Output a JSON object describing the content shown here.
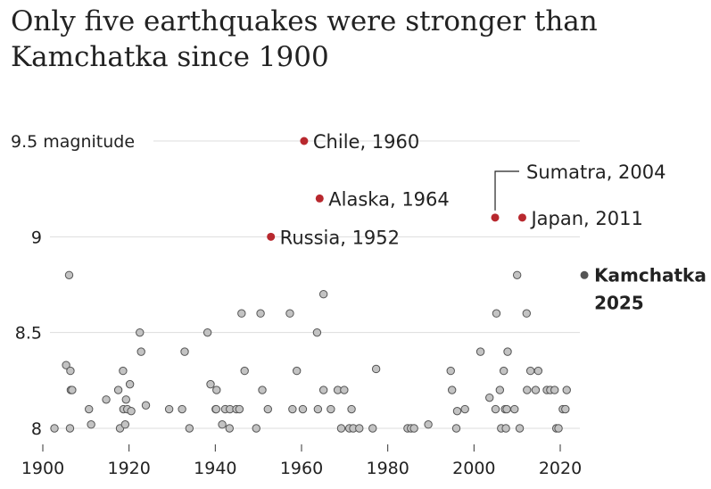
{
  "title_line1": "Only five earthquakes were stronger than",
  "title_line2": "Kamchatka since 1900",
  "chart_data": {
    "type": "scatter",
    "title": "Only five earthquakes were stronger than Kamchatka since 1900",
    "xlim": [
      1900,
      2026
    ],
    "ylim": [
      7.95,
      9.55
    ],
    "x_ticks": [
      1900,
      1920,
      1940,
      1960,
      1980,
      2000,
      2020
    ],
    "y_ticks": [
      {
        "value": 8,
        "label": "8"
      },
      {
        "value": 8.5,
        "label": "8.5"
      },
      {
        "value": 9,
        "label": "9"
      },
      {
        "value": 9.5,
        "label": "9.5 magnitude"
      }
    ],
    "grid": true,
    "colors": {
      "highlight": "#b8282e",
      "kamchatka": "#555555",
      "other_fill": "#c3c3c3",
      "other_stroke": "#555555",
      "grid": "#dddddd"
    },
    "highlighted": [
      {
        "x": 1960.6,
        "y": 9.5,
        "label": "Chile, 1960"
      },
      {
        "x": 1964.2,
        "y": 9.2,
        "label": "Alaska, 1964"
      },
      {
        "x": 1952.9,
        "y": 9.0,
        "label": "Russia, 1952"
      },
      {
        "x": 2004.9,
        "y": 9.1,
        "label": "Sumatra, 2004"
      },
      {
        "x": 2011.2,
        "y": 9.1,
        "label": "Japan, 2011"
      }
    ],
    "kamchatka": {
      "x": 2025.6,
      "y": 8.8,
      "label_line1": "Kamchatka",
      "label_line2": "2025"
    },
    "other_points": [
      [
        1902.7,
        8.0
      ],
      [
        1905.4,
        8.33
      ],
      [
        1906.1,
        8.8
      ],
      [
        1906.3,
        8.0
      ],
      [
        1906.4,
        8.3
      ],
      [
        1906.5,
        8.2
      ],
      [
        1906.8,
        8.2
      ],
      [
        1910.7,
        8.1
      ],
      [
        1911.2,
        8.02
      ],
      [
        1914.7,
        8.15
      ],
      [
        1917.5,
        8.2
      ],
      [
        1917.9,
        8.0
      ],
      [
        1918.6,
        8.3
      ],
      [
        1918.7,
        8.1
      ],
      [
        1919.1,
        8.02
      ],
      [
        1919.6,
        8.1
      ],
      [
        1919.3,
        8.15
      ],
      [
        1920.2,
        8.23
      ],
      [
        1920.5,
        8.09
      ],
      [
        1922.5,
        8.5
      ],
      [
        1922.8,
        8.4
      ],
      [
        1923.9,
        8.12
      ],
      [
        1929.3,
        8.1
      ],
      [
        1932.3,
        8.1
      ],
      [
        1932.9,
        8.4
      ],
      [
        1934.0,
        8.0
      ],
      [
        1938.2,
        8.5
      ],
      [
        1938.9,
        8.23
      ],
      [
        1940.1,
        8.1
      ],
      [
        1940.3,
        8.2
      ],
      [
        1941.6,
        8.02
      ],
      [
        1942.3,
        8.1
      ],
      [
        1943.3,
        8.0
      ],
      [
        1943.4,
        8.1
      ],
      [
        1944.9,
        8.1
      ],
      [
        1945.6,
        8.1
      ],
      [
        1946.1,
        8.6
      ],
      [
        1946.8,
        8.3
      ],
      [
        1949.5,
        8.0
      ],
      [
        1950.5,
        8.6
      ],
      [
        1950.9,
        8.2
      ],
      [
        1952.2,
        8.1
      ],
      [
        1957.3,
        8.6
      ],
      [
        1957.9,
        8.1
      ],
      [
        1958.9,
        8.3
      ],
      [
        1960.3,
        8.1
      ],
      [
        1963.8,
        8.1
      ],
      [
        1963.6,
        8.5
      ],
      [
        1965.1,
        8.7
      ],
      [
        1965.1,
        8.2
      ],
      [
        1966.8,
        8.1
      ],
      [
        1968.4,
        8.2
      ],
      [
        1969.2,
        8.0
      ],
      [
        1969.9,
        8.2
      ],
      [
        1971.1,
        8.0
      ],
      [
        1971.6,
        8.1
      ],
      [
        1972.0,
        8.0
      ],
      [
        1973.4,
        8.0
      ],
      [
        1976.5,
        8.0
      ],
      [
        1977.3,
        8.31
      ],
      [
        1984.6,
        8.0
      ],
      [
        1985.4,
        8.0
      ],
      [
        1986.1,
        8.0
      ],
      [
        1989.4,
        8.02
      ],
      [
        1994.6,
        8.3
      ],
      [
        1994.9,
        8.2
      ],
      [
        1995.9,
        8.0
      ],
      [
        1996.1,
        8.09
      ],
      [
        1997.9,
        8.1
      ],
      [
        2001.5,
        8.4
      ],
      [
        2003.6,
        8.16
      ],
      [
        2005.2,
        8.6
      ],
      [
        2005.0,
        8.1
      ],
      [
        2006.9,
        8.3
      ],
      [
        2007.2,
        8.1
      ],
      [
        2007.6,
        8.1
      ],
      [
        2007.8,
        8.4
      ],
      [
        2009.4,
        8.1
      ],
      [
        2010.0,
        8.8
      ],
      [
        2010.6,
        8.0
      ],
      [
        2012.2,
        8.6
      ],
      [
        2012.3,
        8.2
      ],
      [
        2013.1,
        8.3
      ],
      [
        2014.3,
        8.2
      ],
      [
        2014.9,
        8.3
      ],
      [
        2016.9,
        8.2
      ],
      [
        2017.7,
        8.2
      ],
      [
        2018.7,
        8.2
      ],
      [
        2019.1,
        8.0
      ],
      [
        2019.6,
        8.0
      ],
      [
        2020.6,
        8.1
      ],
      [
        2021.2,
        8.1
      ],
      [
        2021.5,
        8.2
      ],
      [
        2006.3,
        8.0
      ],
      [
        2007.4,
        8.0
      ],
      [
        2006.0,
        8.2
      ],
      [
        1940.2,
        8.1
      ]
    ]
  }
}
